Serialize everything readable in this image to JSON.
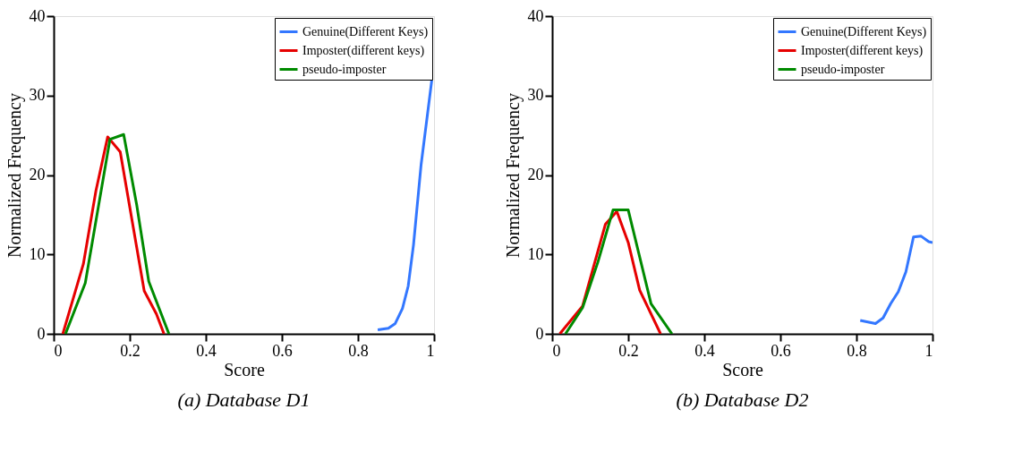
{
  "chart_data": [
    {
      "type": "line",
      "title": "(a) Database D1",
      "xlabel": "Score",
      "ylabel": "Normalized Frequency",
      "xlim": [
        0,
        1
      ],
      "ylim": [
        0,
        40
      ],
      "xticks": [
        0,
        0.2,
        0.4,
        0.6,
        0.8,
        1
      ],
      "yticks": [
        0,
        10,
        20,
        30,
        40
      ],
      "grid": false,
      "legend": "top right",
      "marker": "none",
      "line_style": "solid",
      "series": [
        {
          "name": "Genuine(Different Keys)",
          "color": "#3377ff",
          "x": [
            0.852,
            0.88,
            0.898,
            0.917,
            0.932,
            0.946,
            0.966,
            0.994
          ],
          "values": [
            0.5,
            0.7,
            1.3,
            3.2,
            6.0,
            11.2,
            21.3,
            31.9
          ]
        },
        {
          "name": "Imposter(different keys)",
          "color": "#e60000",
          "x": [
            0.024,
            0.078,
            0.111,
            0.142,
            0.175,
            0.238,
            0.27,
            0.29
          ],
          "values": [
            0,
            8.8,
            18.0,
            24.8,
            22.9,
            5.4,
            2.5,
            0
          ]
        },
        {
          "name": "pseudo-imposter",
          "color": "#008a00",
          "x": [
            0.031,
            0.083,
            0.148,
            0.184,
            0.218,
            0.25,
            0.303
          ],
          "values": [
            0,
            6.4,
            24.5,
            25.1,
            16.3,
            6.6,
            0
          ]
        }
      ]
    },
    {
      "type": "line",
      "title": "(b) Database D2",
      "xlabel": "Score",
      "ylabel": "Normalized Frequency",
      "xlim": [
        0,
        1
      ],
      "ylim": [
        0,
        40
      ],
      "xticks": [
        0,
        0.2,
        0.4,
        0.6,
        0.8,
        1
      ],
      "yticks": [
        0,
        10,
        20,
        30,
        40
      ],
      "grid": false,
      "legend": "top right",
      "marker": "none",
      "line_style": "solid",
      "series": [
        {
          "name": "Genuine(Different Keys)",
          "color": "#3377ff",
          "x": [
            0.81,
            0.85,
            0.87,
            0.89,
            0.91,
            0.93,
            0.95,
            0.97,
            0.99,
            1.0
          ],
          "values": [
            1.7,
            1.3,
            2.0,
            3.8,
            5.3,
            7.8,
            12.2,
            12.3,
            11.6,
            11.5
          ]
        },
        {
          "name": "Imposter(different keys)",
          "color": "#e60000",
          "x": [
            0.02,
            0.08,
            0.14,
            0.17,
            0.2,
            0.23,
            0.285
          ],
          "values": [
            0,
            3.5,
            13.8,
            15.4,
            11.5,
            5.5,
            0
          ]
        },
        {
          "name": "pseudo-imposter",
          "color": "#008a00",
          "x": [
            0.035,
            0.08,
            0.12,
            0.16,
            0.2,
            0.26,
            0.315
          ],
          "values": [
            0,
            3.3,
            9.0,
            15.6,
            15.6,
            3.8,
            0
          ]
        }
      ]
    }
  ]
}
